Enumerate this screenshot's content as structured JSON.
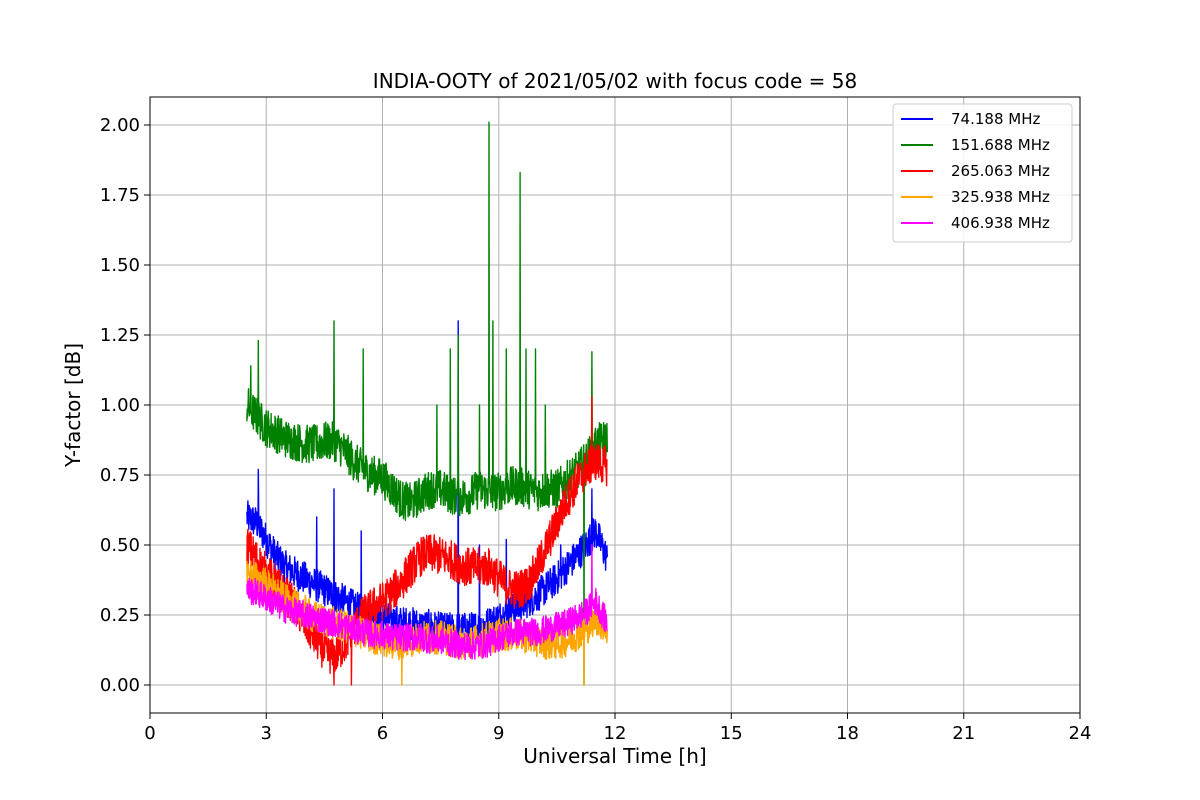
{
  "chart_data": {
    "type": "line",
    "title": "INDIA-OOTY of 2021/05/02 with focus code = 58",
    "xlabel": "Universal Time [h]",
    "ylabel": "Y-factor [dB]",
    "xlim": [
      0,
      24
    ],
    "ylim": [
      -0.1,
      2.1
    ],
    "xticks": [
      0,
      3,
      6,
      9,
      12,
      15,
      18,
      21,
      24
    ],
    "yticks": [
      "0.00",
      "0.25",
      "0.50",
      "0.75",
      "1.00",
      "1.25",
      "1.50",
      "1.75",
      "2.00"
    ],
    "grid": true,
    "legend_position": "top-right",
    "series": [
      {
        "name": " 74.188 MHz",
        "color": "#0000ff",
        "x": [
          2.5,
          2.75,
          3.0,
          3.25,
          3.5,
          3.75,
          4.0,
          4.25,
          4.5,
          4.75,
          5.0,
          5.25,
          5.5,
          5.75,
          6.0,
          6.25,
          6.5,
          6.75,
          7.0,
          7.25,
          7.5,
          7.75,
          8.0,
          8.25,
          8.5,
          8.75,
          9.0,
          9.25,
          9.5,
          9.75,
          10.0,
          10.25,
          10.5,
          10.75,
          11.0,
          11.25,
          11.5,
          11.8
        ],
        "y": [
          0.6,
          0.58,
          0.52,
          0.46,
          0.42,
          0.4,
          0.38,
          0.36,
          0.34,
          0.32,
          0.3,
          0.28,
          0.26,
          0.25,
          0.24,
          0.23,
          0.22,
          0.22,
          0.21,
          0.21,
          0.2,
          0.2,
          0.2,
          0.2,
          0.21,
          0.22,
          0.24,
          0.26,
          0.28,
          0.3,
          0.32,
          0.35,
          0.38,
          0.42,
          0.46,
          0.5,
          0.55,
          0.45
        ],
        "noise": 0.06,
        "spikes": [
          [
            2.8,
            0.77
          ],
          [
            4.3,
            0.6
          ],
          [
            4.75,
            0.7
          ],
          [
            5.45,
            0.55
          ],
          [
            7.95,
            1.3
          ],
          [
            8.5,
            0.5
          ],
          [
            9.2,
            0.52
          ],
          [
            10.6,
            0.5
          ],
          [
            11.4,
            0.7
          ]
        ]
      },
      {
        "name": "151.688 MHz",
        "color": "#008000",
        "x": [
          2.5,
          2.75,
          3.0,
          3.25,
          3.5,
          3.75,
          4.0,
          4.25,
          4.5,
          4.75,
          5.0,
          5.25,
          5.5,
          5.75,
          6.0,
          6.25,
          6.5,
          6.75,
          7.0,
          7.25,
          7.5,
          7.75,
          8.0,
          8.25,
          8.5,
          8.75,
          9.0,
          9.25,
          9.5,
          9.75,
          10.0,
          10.25,
          10.5,
          10.75,
          11.0,
          11.25,
          11.5,
          11.8
        ],
        "y": [
          1.0,
          0.96,
          0.92,
          0.9,
          0.88,
          0.87,
          0.86,
          0.86,
          0.87,
          0.87,
          0.84,
          0.8,
          0.77,
          0.75,
          0.74,
          0.7,
          0.66,
          0.65,
          0.68,
          0.7,
          0.7,
          0.68,
          0.67,
          0.68,
          0.7,
          0.69,
          0.69,
          0.71,
          0.71,
          0.7,
          0.69,
          0.7,
          0.7,
          0.73,
          0.76,
          0.8,
          0.86,
          0.88
        ],
        "noise": 0.07,
        "spikes": [
          [
            2.6,
            1.14
          ],
          [
            2.8,
            1.23
          ],
          [
            4.75,
            1.3
          ],
          [
            5.5,
            1.2
          ],
          [
            7.4,
            1.0
          ],
          [
            7.75,
            1.2
          ],
          [
            7.95,
            1.25
          ],
          [
            8.5,
            1.0
          ],
          [
            8.75,
            2.01
          ],
          [
            8.85,
            1.3
          ],
          [
            9.2,
            1.2
          ],
          [
            9.55,
            1.83
          ],
          [
            9.7,
            1.2
          ],
          [
            9.95,
            1.2
          ],
          [
            10.2,
            1.0
          ],
          [
            11.2,
            0.0
          ],
          [
            11.4,
            1.19
          ]
        ]
      },
      {
        "name": "265.063 MHz",
        "color": "#ff0000",
        "x": [
          2.5,
          2.75,
          3.0,
          3.25,
          3.5,
          3.75,
          4.0,
          4.25,
          4.5,
          4.75,
          5.0,
          5.25,
          5.5,
          5.75,
          6.0,
          6.25,
          6.5,
          6.75,
          7.0,
          7.25,
          7.5,
          7.75,
          8.0,
          8.25,
          8.5,
          8.75,
          9.0,
          9.25,
          9.5,
          9.75,
          10.0,
          10.25,
          10.5,
          10.75,
          11.0,
          11.25,
          11.5,
          11.8
        ],
        "y": [
          0.5,
          0.45,
          0.4,
          0.36,
          0.32,
          0.28,
          0.22,
          0.17,
          0.12,
          0.1,
          0.14,
          0.2,
          0.25,
          0.28,
          0.3,
          0.33,
          0.37,
          0.42,
          0.46,
          0.47,
          0.46,
          0.45,
          0.43,
          0.42,
          0.42,
          0.42,
          0.38,
          0.35,
          0.34,
          0.36,
          0.42,
          0.5,
          0.58,
          0.66,
          0.72,
          0.77,
          0.8,
          0.78
        ],
        "noise": 0.07,
        "spikes": [
          [
            4.75,
            0.0
          ],
          [
            5.2,
            0.0
          ],
          [
            11.4,
            1.03
          ]
        ]
      },
      {
        "name": "325.938 MHz",
        "color": "#ffa500",
        "x": [
          2.5,
          2.75,
          3.0,
          3.25,
          3.5,
          3.75,
          4.0,
          4.25,
          4.5,
          4.75,
          5.0,
          5.25,
          5.5,
          5.75,
          6.0,
          6.25,
          6.5,
          6.75,
          7.0,
          7.25,
          7.5,
          7.75,
          8.0,
          8.25,
          8.5,
          8.75,
          9.0,
          9.25,
          9.5,
          9.75,
          10.0,
          10.25,
          10.5,
          10.75,
          11.0,
          11.25,
          11.5,
          11.8
        ],
        "y": [
          0.4,
          0.38,
          0.36,
          0.33,
          0.3,
          0.28,
          0.26,
          0.24,
          0.23,
          0.22,
          0.21,
          0.2,
          0.18,
          0.17,
          0.16,
          0.15,
          0.15,
          0.16,
          0.17,
          0.17,
          0.17,
          0.16,
          0.15,
          0.15,
          0.16,
          0.17,
          0.18,
          0.18,
          0.18,
          0.17,
          0.16,
          0.15,
          0.15,
          0.16,
          0.18,
          0.2,
          0.24,
          0.2
        ],
        "noise": 0.06,
        "spikes": [
          [
            6.5,
            0.0
          ],
          [
            11.2,
            0.0
          ]
        ]
      },
      {
        "name": "406.938 MHz",
        "color": "#ff00ff",
        "x": [
          2.5,
          2.75,
          3.0,
          3.25,
          3.5,
          3.75,
          4.0,
          4.25,
          4.5,
          4.75,
          5.0,
          5.25,
          5.5,
          5.75,
          6.0,
          6.25,
          6.5,
          6.75,
          7.0,
          7.25,
          7.5,
          7.75,
          8.0,
          8.25,
          8.5,
          8.75,
          9.0,
          9.25,
          9.5,
          9.75,
          10.0,
          10.25,
          10.5,
          10.75,
          11.0,
          11.25,
          11.5,
          11.8
        ],
        "y": [
          0.34,
          0.33,
          0.31,
          0.29,
          0.27,
          0.26,
          0.25,
          0.24,
          0.23,
          0.22,
          0.21,
          0.2,
          0.19,
          0.18,
          0.18,
          0.17,
          0.17,
          0.17,
          0.17,
          0.16,
          0.16,
          0.15,
          0.14,
          0.14,
          0.14,
          0.15,
          0.17,
          0.18,
          0.19,
          0.19,
          0.19,
          0.2,
          0.21,
          0.22,
          0.24,
          0.26,
          0.3,
          0.22
        ],
        "noise": 0.05,
        "spikes": [
          [
            11.4,
            0.5
          ]
        ]
      }
    ]
  }
}
